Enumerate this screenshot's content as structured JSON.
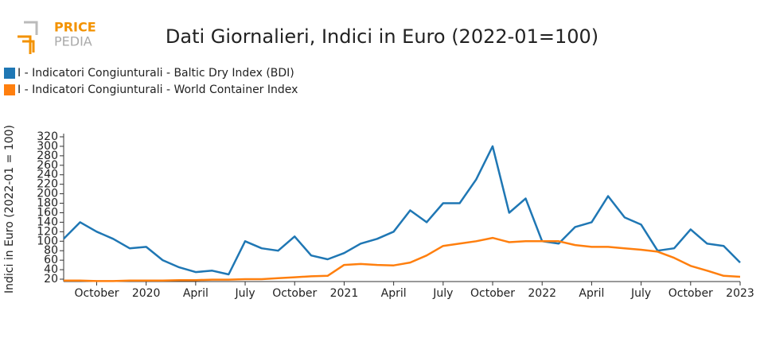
{
  "logo": [
    "PRICE",
    "PEDIA"
  ],
  "chart_data": {
    "type": "line",
    "title": "Dati Giornalieri, Indici in Euro (2022-01=100)",
    "ylabel": "Indici in Euro (2022-01 = 100)",
    "x": [
      "2019-08",
      "2019-09",
      "2019-10",
      "2019-11",
      "2019-12",
      "2020-01",
      "2020-02",
      "2020-03",
      "2020-04",
      "2020-05",
      "2020-06",
      "2020-07",
      "2020-08",
      "2020-09",
      "2020-10",
      "2020-11",
      "2020-12",
      "2021-01",
      "2021-02",
      "2021-03",
      "2021-04",
      "2021-05",
      "2021-06",
      "2021-07",
      "2021-08",
      "2021-09",
      "2021-10",
      "2021-11",
      "2021-12",
      "2022-01",
      "2022-02",
      "2022-03",
      "2022-04",
      "2022-05",
      "2022-06",
      "2022-07",
      "2022-08",
      "2022-09",
      "2022-10",
      "2022-11",
      "2022-12",
      "2023-01"
    ],
    "series": [
      {
        "name": "I - Indicatori Congiunturali - Baltic Dry Index (BDI)",
        "color": "#1f77b4",
        "values": [
          105,
          140,
          120,
          105,
          85,
          88,
          60,
          45,
          35,
          38,
          30,
          100,
          85,
          80,
          110,
          70,
          62,
          75,
          95,
          105,
          120,
          165,
          140,
          180,
          180,
          230,
          300,
          160,
          190,
          100,
          95,
          130,
          140,
          195,
          150,
          135,
          80,
          85,
          125,
          95,
          90,
          55
        ]
      },
      {
        "name": "I - Indicatori Congiunturali - World Container Index",
        "color": "#ff7f0e",
        "values": [
          17,
          17,
          16,
          16,
          17,
          17,
          17,
          18,
          18,
          19,
          19,
          20,
          20,
          22,
          24,
          26,
          27,
          50,
          52,
          50,
          49,
          55,
          70,
          90,
          95,
          100,
          107,
          98,
          100,
          100,
          100,
          92,
          88,
          88,
          85,
          82,
          78,
          65,
          48,
          38,
          27,
          25
        ]
      }
    ],
    "xlim": [
      "2019-08",
      "2023-01"
    ],
    "xticks": [
      {
        "value": "2019-10",
        "label": "October"
      },
      {
        "value": "2020-01",
        "label": "2020"
      },
      {
        "value": "2020-04",
        "label": "April"
      },
      {
        "value": "2020-07",
        "label": "July"
      },
      {
        "value": "2020-10",
        "label": "October"
      },
      {
        "value": "2021-01",
        "label": "2021"
      },
      {
        "value": "2021-04",
        "label": "April"
      },
      {
        "value": "2021-07",
        "label": "July"
      },
      {
        "value": "2021-10",
        "label": "October"
      },
      {
        "value": "2022-01",
        "label": "2022"
      },
      {
        "value": "2022-04",
        "label": "April"
      },
      {
        "value": "2022-07",
        "label": "July"
      },
      {
        "value": "2022-10",
        "label": "October"
      },
      {
        "value": "2023-01",
        "label": "2023"
      }
    ],
    "ylim": [
      15,
      320
    ],
    "yticks": [
      20,
      40,
      60,
      80,
      100,
      120,
      140,
      160,
      180,
      200,
      220,
      240,
      260,
      280,
      300,
      320
    ]
  }
}
